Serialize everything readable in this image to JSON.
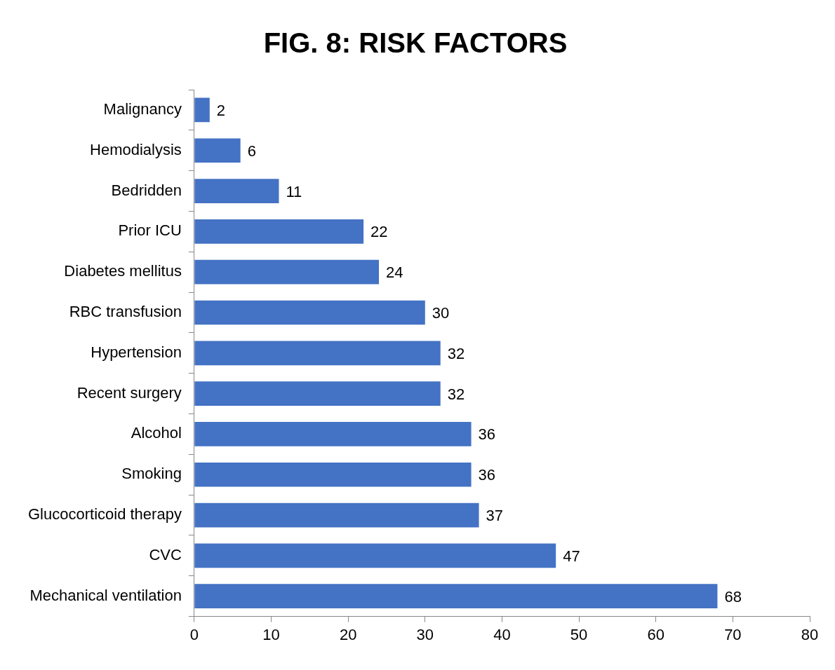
{
  "chart_data": {
    "type": "bar",
    "orientation": "horizontal",
    "title": "FIG. 8: RISK FACTORS",
    "categories": [
      "Malignancy",
      "Hemodialysis",
      "Bedridden",
      "Prior ICU",
      "Diabetes mellitus",
      "RBC transfusion",
      "Hypertension",
      "Recent surgery",
      "Alcohol",
      "Smoking",
      "Glucocorticoid therapy",
      "CVC",
      "Mechanical ventilation"
    ],
    "values": [
      2,
      6,
      11,
      22,
      24,
      30,
      32,
      32,
      36,
      36,
      37,
      47,
      68
    ],
    "color": "#4472c4",
    "xlim": [
      0,
      80
    ],
    "xticks": [
      0,
      10,
      20,
      30,
      40,
      50,
      60,
      70,
      80
    ],
    "grid": false,
    "legend": false,
    "data_labels": true
  }
}
